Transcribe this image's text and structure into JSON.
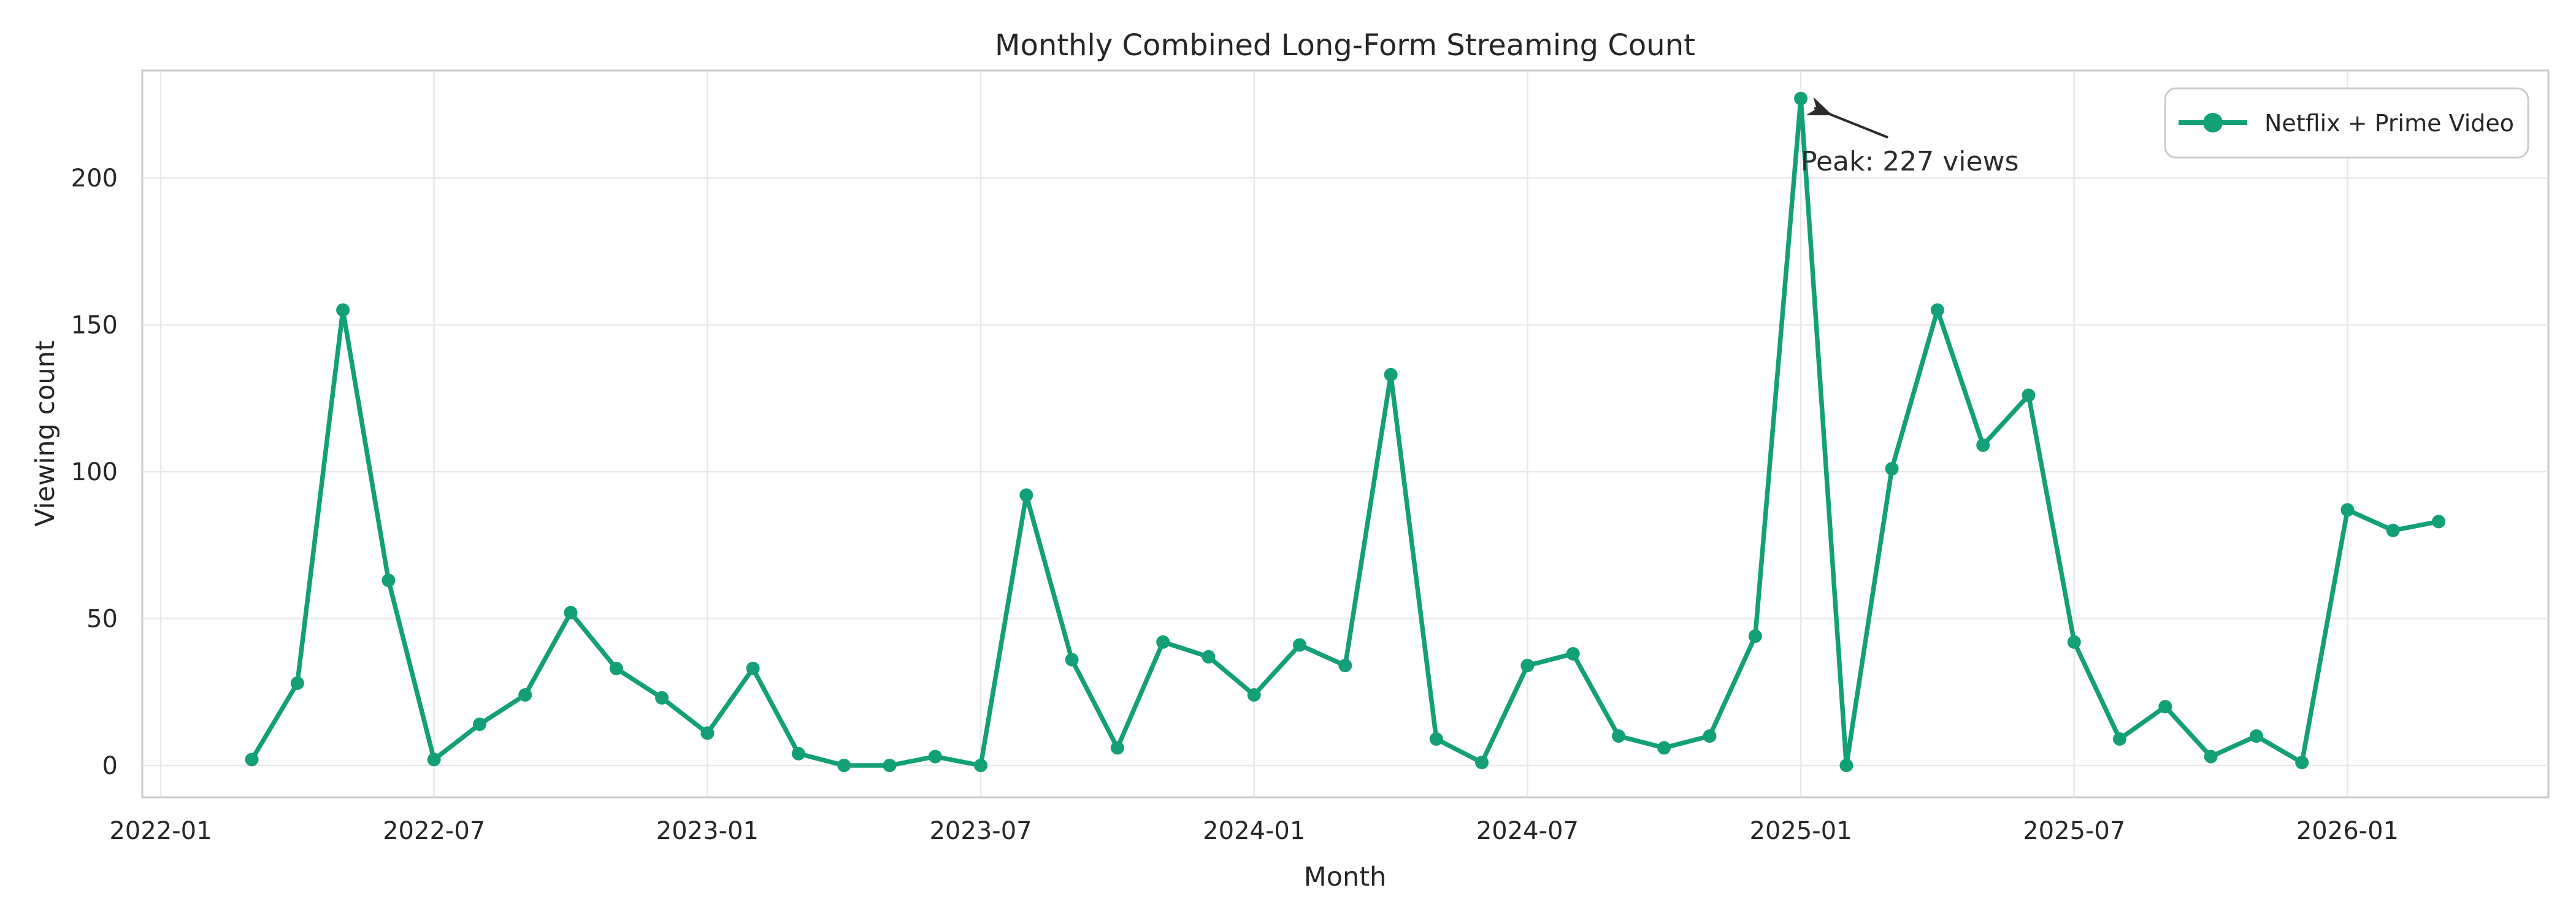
{
  "title": "Monthly Combined Long-Form Streaming Count",
  "x_axis": {
    "label": "Month",
    "tick_labels": [
      "2022-01",
      "2022-07",
      "2023-01",
      "2023-07",
      "2024-01",
      "2024-07",
      "2025-01",
      "2025-07",
      "2026-01"
    ]
  },
  "y_axis": {
    "label": "Viewing count",
    "tick_labels": [
      "0",
      "50",
      "100",
      "150",
      "200"
    ],
    "tick_values": [
      0,
      50,
      100,
      150,
      200
    ]
  },
  "legend": {
    "label": "Netflix + Prime Video"
  },
  "annotation": {
    "text": "Peak: 227 views"
  },
  "colors": {
    "line": "#14a076",
    "grid": "#e8e8e8",
    "spine": "#c9c9c9",
    "text": "#262626",
    "arrow": "#2b2b2b",
    "background": "#ffffff"
  },
  "chart_data": {
    "type": "line",
    "title": "Monthly Combined Long-Form Streaming Count",
    "xlabel": "Month",
    "ylabel": "Viewing count",
    "grid": true,
    "legend_position": "upper right",
    "ylim": [
      -11,
      238
    ],
    "x_ticks": [
      "2022-01",
      "2022-07",
      "2023-01",
      "2023-07",
      "2024-01",
      "2024-07",
      "2025-01",
      "2025-07",
      "2026-01"
    ],
    "y_ticks": [
      0,
      50,
      100,
      150,
      200
    ],
    "series": [
      {
        "name": "Netflix + Prime Video",
        "x": [
          "2022-03",
          "2022-04",
          "2022-05",
          "2022-06",
          "2022-07",
          "2022-08",
          "2022-09",
          "2022-10",
          "2022-11",
          "2022-12",
          "2023-01",
          "2023-02",
          "2023-03",
          "2023-04",
          "2023-05",
          "2023-06",
          "2023-07",
          "2023-08",
          "2023-09",
          "2023-10",
          "2023-11",
          "2023-12",
          "2024-01",
          "2024-02",
          "2024-03",
          "2024-04",
          "2024-05",
          "2024-06",
          "2024-07",
          "2024-08",
          "2024-09",
          "2024-10",
          "2024-11",
          "2024-12",
          "2025-01",
          "2025-02",
          "2025-03",
          "2025-04",
          "2025-05",
          "2025-06",
          "2025-07",
          "2025-08",
          "2025-09",
          "2025-10",
          "2025-11",
          "2025-12",
          "2026-01",
          "2026-02",
          "2026-03"
        ],
        "values": [
          2,
          28,
          155,
          63,
          2,
          14,
          24,
          52,
          33,
          23,
          11,
          33,
          4,
          0,
          0,
          3,
          0,
          92,
          36,
          6,
          42,
          37,
          24,
          41,
          34,
          133,
          9,
          1,
          34,
          38,
          10,
          6,
          10,
          44,
          227,
          0,
          101,
          155,
          109,
          126,
          42,
          9,
          20,
          3,
          10,
          1,
          87,
          80,
          83
        ]
      }
    ],
    "annotation": {
      "text": "Peak: 227 views",
      "target_x": "2025-01",
      "target_y": 227
    }
  }
}
